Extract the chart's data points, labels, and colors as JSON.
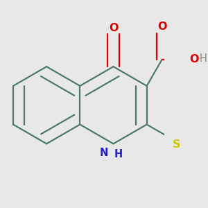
{
  "bg_color": "#e8e8e8",
  "bond_color": "#4a7a6d",
  "bond_width": 1.6,
  "dbo": 0.055,
  "atom_colors": {
    "O": "#dd0000",
    "N": "#2222cc",
    "S": "#cccc00",
    "H": "#888888",
    "C": "#4a7a6d"
  },
  "font_size": 10.5,
  "fig_bg": "#e8e8e8"
}
